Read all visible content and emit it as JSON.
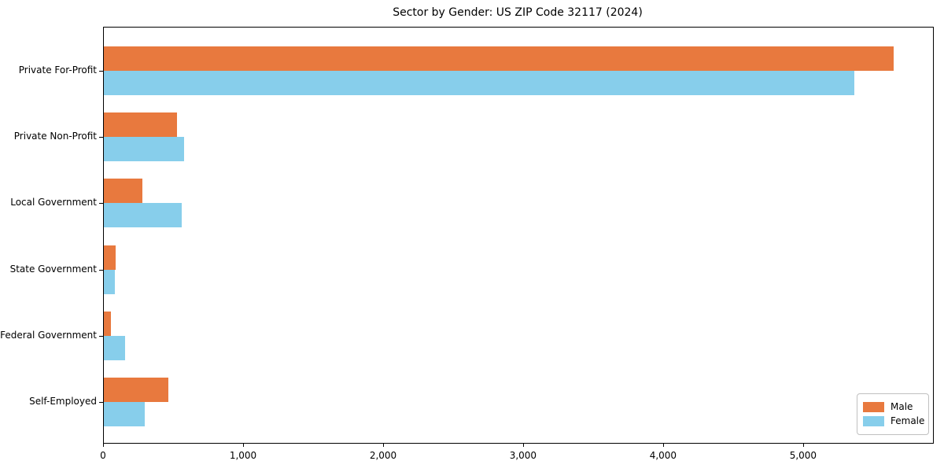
{
  "title": "Sector by Gender: US ZIP Code 32117 (2024)",
  "chart_data": {
    "type": "bar",
    "orientation": "horizontal",
    "title": "Sector by Gender: US ZIP Code 32117 (2024)",
    "categories": [
      "Private For-Profit",
      "Private Non-Profit",
      "Local Government",
      "State Government",
      "Federal Government",
      "Self-Employed"
    ],
    "series": [
      {
        "name": "Male",
        "color": "#E8793E",
        "values": [
          5640,
          520,
          275,
          85,
          50,
          460
        ]
      },
      {
        "name": "Female",
        "color": "#87CEEB",
        "values": [
          5360,
          575,
          555,
          80,
          150,
          290
        ]
      }
    ],
    "xlabel": "",
    "ylabel": "",
    "xlim": [
      0,
      5922
    ],
    "xticks": [
      0,
      1000,
      2000,
      3000,
      4000,
      5000
    ],
    "xtick_labels": [
      "0",
      "1,000",
      "2,000",
      "3,000",
      "4,000",
      "5,000"
    ],
    "grid": false,
    "legend_position": "lower right",
    "background_color": "#ffffff",
    "frame_color": "#000000"
  },
  "legend": {
    "items": [
      {
        "label": "Male",
        "color": "#E8793E"
      },
      {
        "label": "Female",
        "color": "#87CEEB"
      }
    ]
  }
}
